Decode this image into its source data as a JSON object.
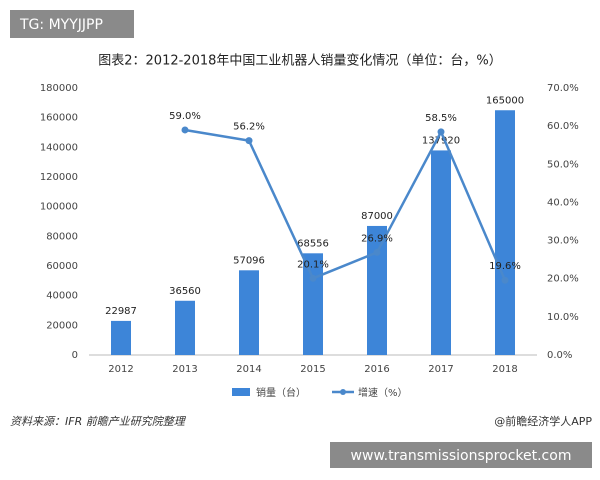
{
  "watermark": "TG: MYYJJPP",
  "source": "资料来源：IFR 前瞻产业研究院整理",
  "credit": "@前瞻经济学人APP",
  "url": "www.transmissionsprocket.com",
  "chart_data": {
    "type": "bar-line",
    "title": "图表2：2012-2018年中国工业机器人销量变化情况（单位：台，%）",
    "categories": [
      "2012",
      "2013",
      "2014",
      "2015",
      "2016",
      "2017",
      "2018"
    ],
    "series": [
      {
        "name": "销量（台）",
        "type": "bar",
        "color": "#3d85d8",
        "values": [
          22987,
          36560,
          57096,
          68556,
          87000,
          137920,
          165000
        ]
      },
      {
        "name": "增速（%）",
        "type": "line",
        "axis": "y2",
        "color": "#4a88cb",
        "values": [
          null,
          59.0,
          56.2,
          20.1,
          26.9,
          58.5,
          19.6
        ],
        "value_labels": [
          null,
          "59.0%",
          "56.2%",
          "20.1%",
          "26.9%",
          "58.5%",
          "19.6%"
        ]
      }
    ],
    "ylim": [
      0,
      180000
    ],
    "yticks": [
      0,
      20000,
      40000,
      60000,
      80000,
      100000,
      120000,
      140000,
      160000,
      180000
    ],
    "y2lim": [
      0,
      70
    ],
    "y2ticks": [
      {
        "value": 0,
        "label": "0.0%"
      },
      {
        "value": 10,
        "label": "10.0%"
      },
      {
        "value": 20,
        "label": "20.0%"
      },
      {
        "value": 30,
        "label": "30.0%"
      },
      {
        "value": 40,
        "label": "40.0%"
      },
      {
        "value": 50,
        "label": "50.0%"
      },
      {
        "value": 60,
        "label": "60.0%"
      },
      {
        "value": 70,
        "label": "70.0%"
      }
    ],
    "grid": false,
    "legend": "bottom"
  }
}
